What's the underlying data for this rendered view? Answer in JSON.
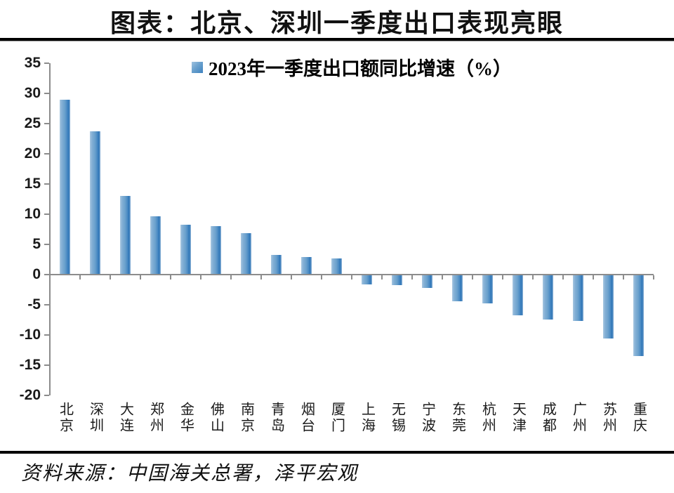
{
  "page": {
    "title": "图表：北京、深圳一季度出口表现亮眼",
    "source_note": "资料来源：中国海关总署，泽平宏观"
  },
  "legend": {
    "label": "2023年一季度出口额同比增速（%）",
    "marker_color": "#5b9bd5"
  },
  "chart_data": {
    "type": "bar",
    "title": "2023年一季度出口额同比增速（%）",
    "categories": [
      "北京",
      "深圳",
      "大连",
      "郑州",
      "金华",
      "佛山",
      "南京",
      "青岛",
      "烟台",
      "厦门",
      "上海",
      "无锡",
      "宁波",
      "东莞",
      "杭州",
      "天津",
      "成都",
      "广州",
      "苏州",
      "重庆"
    ],
    "values": [
      28.9,
      23.7,
      13.0,
      9.7,
      8.2,
      8.0,
      6.9,
      3.2,
      2.9,
      2.7,
      -1.5,
      -1.6,
      -2.1,
      -4.3,
      -4.7,
      -6.6,
      -7.3,
      -7.5,
      -10.5,
      -13.4
    ],
    "xlabel": "",
    "ylabel": "",
    "ylim": [
      -20,
      35
    ],
    "yticks": [
      35,
      30,
      25,
      20,
      15,
      10,
      5,
      0,
      -5,
      -10,
      -15,
      -20
    ],
    "grid": false,
    "legend_position": "top-center",
    "bar_color": "#5b9bd5",
    "axis_color": "#8c8c8c"
  }
}
